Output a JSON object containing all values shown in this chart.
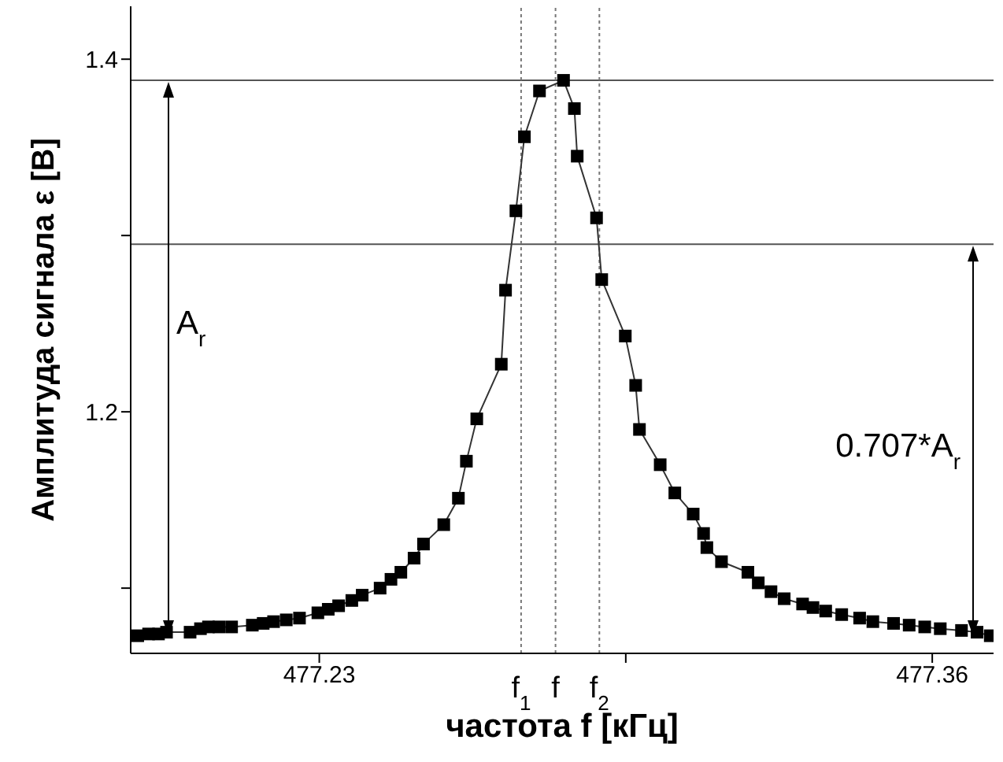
{
  "chart_data": {
    "type": "line",
    "xlabel": "частота f [кГц]",
    "ylabel": "Амплитуда сигнала  ε [В]",
    "color": "#000000",
    "marker": "square",
    "line_style": "solid",
    "x": [
      477.1915,
      477.1938,
      477.1959,
      477.1976,
      477.2026,
      477.2048,
      477.2065,
      477.2087,
      477.2114,
      477.2158,
      477.2181,
      477.2203,
      477.223,
      477.2258,
      477.2297,
      477.2319,
      477.2341,
      477.2369,
      477.2391,
      477.2429,
      477.2452,
      477.2473,
      477.2501,
      477.2521,
      477.2564,
      477.2595,
      477.2612,
      477.2634,
      477.2686,
      477.2695,
      477.2717,
      477.2735,
      477.2767,
      477.2818,
      477.2841,
      477.2847,
      477.2888,
      477.2899,
      477.2949,
      477.2971,
      477.2979,
      477.3023,
      477.3054,
      477.3093,
      477.3115,
      477.3122,
      477.3153,
      477.3209,
      477.3231,
      477.3258,
      477.3286,
      477.3325,
      477.3347,
      477.3374,
      477.3408,
      477.3446,
      477.3474,
      477.3518,
      477.3551,
      477.3584,
      477.3617,
      477.3662,
      477.3695,
      477.3723
    ],
    "values": [
      1.073,
      1.074,
      1.074,
      1.075,
      1.075,
      1.077,
      1.078,
      1.078,
      1.078,
      1.079,
      1.08,
      1.081,
      1.082,
      1.083,
      1.086,
      1.088,
      1.09,
      1.093,
      1.096,
      1.1,
      1.105,
      1.109,
      1.117,
      1.125,
      1.136,
      1.151,
      1.172,
      1.196,
      1.227,
      1.269,
      1.314,
      1.356,
      1.382,
      1.388,
      1.372,
      1.345,
      1.31,
      1.275,
      1.243,
      1.215,
      1.19,
      1.17,
      1.154,
      1.142,
      1.131,
      1.123,
      1.115,
      1.109,
      1.103,
      1.098,
      1.094,
      1.091,
      1.089,
      1.087,
      1.085,
      1.083,
      1.081,
      1.08,
      1.079,
      1.078,
      1.077,
      1.076,
      1.075,
      1.073
    ],
    "xlim": [
      477.19,
      477.373
    ],
    "xticks": [
      477.23,
      {
        "value": 477.295,
        "label": null
      },
      477.36
    ],
    "ylim": [
      1.063,
      1.43
    ],
    "yticks": [
      {
        "value": 1.1,
        "label": null
      },
      1.2,
      {
        "value": 1.3,
        "label": null
      },
      1.4
    ],
    "grid": false,
    "legend": false,
    "ref_lines": [
      {
        "axis": "y",
        "value": 1.388,
        "color": "#555555",
        "line_style": "solid"
      },
      {
        "axis": "y",
        "value": 1.295,
        "color": "#555555",
        "line_style": "solid"
      },
      {
        "axis": "x",
        "value": 477.2728,
        "label": "f$_{1}$",
        "color": "#777777",
        "line_style": "dotted"
      },
      {
        "axis": "x",
        "value": 477.2801,
        "label": "f",
        "color": "#777777",
        "line_style": "dotted"
      },
      {
        "axis": "x",
        "value": 477.2894,
        "label": "f$_{2}$",
        "color": "#777777",
        "line_style": "dotted"
      }
    ],
    "annotations": [
      "A$_{r}$",
      "0.707*A$_{r}$"
    ]
  }
}
